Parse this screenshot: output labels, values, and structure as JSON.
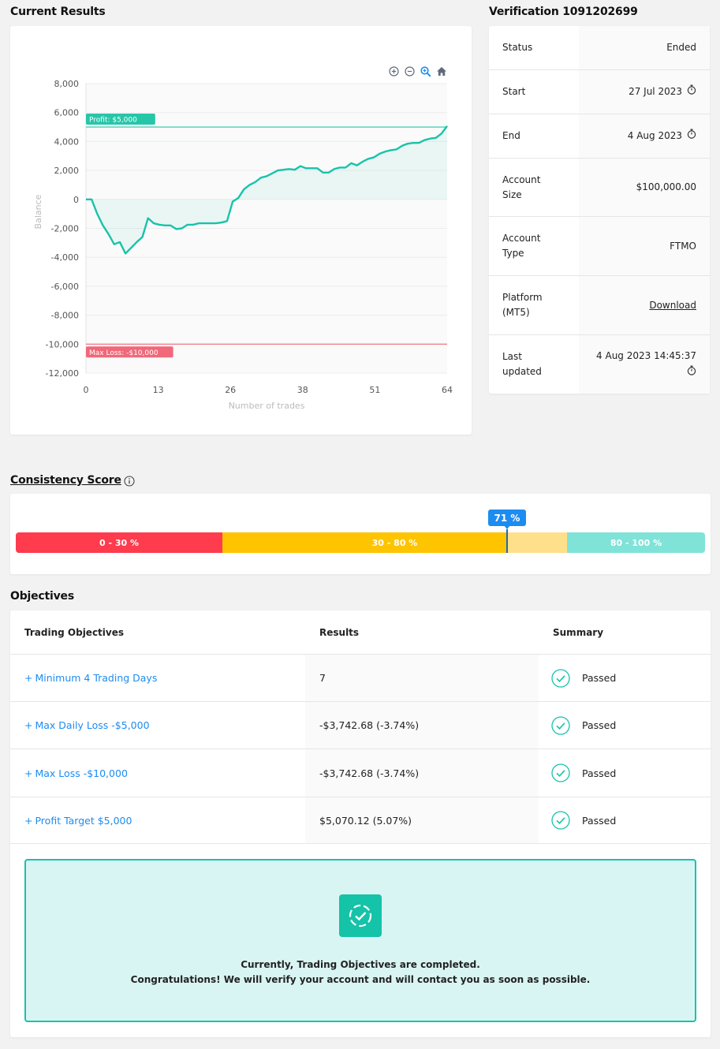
{
  "current_results": {
    "title": "Current Results"
  },
  "chart_data": {
    "type": "line",
    "xlabel": "Number of trades",
    "ylabel": "Balance",
    "xlim": [
      0,
      64
    ],
    "ylim": [
      -12000,
      8000
    ],
    "x_ticks": [
      "0",
      "13",
      "26",
      "38",
      "51",
      "64"
    ],
    "y_ticks": [
      "8,000",
      "6,000",
      "4,000",
      "2,000",
      "0",
      "-2,000",
      "-4,000",
      "-6,000",
      "-8,000",
      "-10,000",
      "-12,000"
    ],
    "series": [
      {
        "x": [
          0,
          1,
          2,
          3,
          4,
          5,
          6,
          7,
          8,
          9,
          10,
          11,
          12,
          13,
          14,
          15,
          16,
          17,
          18,
          19,
          20,
          21,
          22,
          23,
          24,
          25,
          26,
          27,
          28,
          29,
          30,
          31,
          32,
          33,
          34,
          35,
          36,
          37,
          38,
          39,
          40,
          41,
          42,
          43,
          44,
          45,
          46,
          47,
          48,
          49,
          50,
          51,
          52,
          53,
          54,
          55,
          56,
          57,
          58,
          59,
          60,
          61,
          62,
          63,
          64
        ],
        "y": [
          0,
          0,
          -1000,
          -1800,
          -2400,
          -3100,
          -2950,
          -3740,
          -3350,
          -2950,
          -2600,
          -1300,
          -1650,
          -1750,
          -1800,
          -1800,
          -2050,
          -2000,
          -1750,
          -1750,
          -1650,
          -1650,
          -1650,
          -1650,
          -1600,
          -1500,
          -150,
          100,
          700,
          1000,
          1200,
          1500,
          1600,
          1800,
          2000,
          2050,
          2100,
          2050,
          2300,
          2150,
          2150,
          2150,
          1850,
          1850,
          2100,
          2200,
          2200,
          2500,
          2350,
          2600,
          2800,
          2900,
          3150,
          3300,
          3400,
          3450,
          3700,
          3850,
          3900,
          3900,
          4100,
          4200,
          4250,
          4550,
          5070
        ]
      }
    ],
    "reference_lines": [
      {
        "label": "Profit: $5,000",
        "value": 5000,
        "color": "#26c6a8"
      },
      {
        "label": "Max Loss: -$10,000",
        "value": -10000,
        "color": "#f0687a"
      }
    ],
    "line_color": "#18c3a9",
    "grid": true
  },
  "chart_toolbar": {
    "zoom_in": "zoom-in-icon",
    "zoom_out": "zoom-out-icon",
    "zoom": "zoom-icon",
    "home": "home-icon"
  },
  "verification": {
    "title": "Verification 1091202699",
    "rows": [
      {
        "label": "Status",
        "value": "Ended"
      },
      {
        "label": "Start",
        "value": "27 Jul 2023"
      },
      {
        "label": "End",
        "value": "4 Aug 2023"
      },
      {
        "label": "Account Size",
        "value": "$100,000.00"
      },
      {
        "label": "Account Type",
        "value": "FTMO"
      },
      {
        "label": "Platform (MT5)",
        "value": "Download"
      },
      {
        "label": "Last updated",
        "value": "4 Aug 2023 14:45:37"
      }
    ]
  },
  "consistency": {
    "title": "Consistency Score",
    "score": "71 %",
    "score_value": 71,
    "segments": [
      {
        "label": "0 - 30 %",
        "color": "#ff3b4e"
      },
      {
        "label": "30 - 80 %",
        "color": "#ffc400"
      },
      {
        "label": "80 - 100 %",
        "color": "#7fe3d8"
      }
    ]
  },
  "objectives": {
    "title": "Objectives",
    "headers": {
      "name": "Trading Objectives",
      "results": "Results",
      "summary": "Summary"
    },
    "rows": [
      {
        "name": "Minimum 4 Trading Days",
        "result": "7",
        "summary": "Passed"
      },
      {
        "name": "Max Daily Loss -$5,000",
        "result": "-$3,742.68 (-3.74%)",
        "summary": "Passed"
      },
      {
        "name": "Max Loss -$10,000",
        "result": "-$3,742.68 (-3.74%)",
        "summary": "Passed"
      },
      {
        "name": "Profit Target $5,000",
        "result": "$5,070.12 (5.07%)",
        "summary": "Passed"
      }
    ],
    "plus": "+",
    "banner": {
      "line1": "Currently, Trading Objectives are completed.",
      "line2": "Congratulations! We will verify your account and will contact you as soon as possible."
    }
  }
}
